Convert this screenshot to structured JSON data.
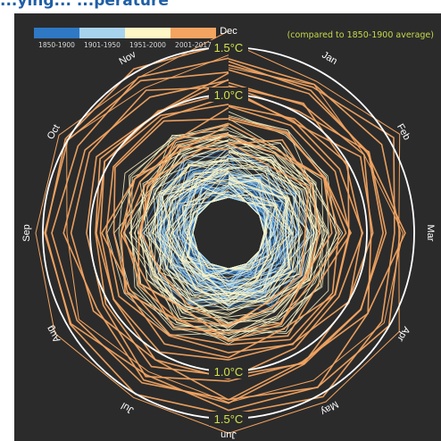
{
  "header": {
    "title_partial": "...ying... ...perature"
  },
  "legend": {
    "items": [
      {
        "label": "1850-1900",
        "color": "#2f78c4"
      },
      {
        "label": "1901-1950",
        "color": "#a8d3ee"
      },
      {
        "label": "1951-2000",
        "color": "#fff6c6"
      },
      {
        "label": "2001-2017",
        "color": "#f3a461"
      }
    ]
  },
  "note": "(compared to 1850-1900 average)",
  "chart_data": {
    "type": "line",
    "subtype": "radial",
    "angular_axis": [
      "Dec",
      "Jan",
      "Feb",
      "Mar",
      "Apr",
      "May",
      "Jun",
      "Jul",
      "Aug",
      "Sep",
      "Oct",
      "Nov"
    ],
    "radial_axis": {
      "unit": "°C",
      "range": [
        -1.0,
        1.5
      ],
      "reference_rings": [
        {
          "value": 1.0,
          "label": "1.0°C"
        },
        {
          "value": 1.5,
          "label": "1.5°C"
        }
      ]
    },
    "series_groups": [
      {
        "name": "1850-1900",
        "color": "#2f78c4",
        "approx_anomaly_range": [
          -0.5,
          0.3
        ]
      },
      {
        "name": "1901-1950",
        "color": "#a8d3ee",
        "approx_anomaly_range": [
          -0.35,
          0.35
        ]
      },
      {
        "name": "1951-2000",
        "color": "#fff6c6",
        "approx_anomaly_range": [
          -0.1,
          0.7
        ]
      },
      {
        "name": "2001-2017",
        "color": "#f3a461",
        "approx_anomaly_range": [
          0.45,
          1.45
        ]
      }
    ],
    "label_color": "#d4e24a",
    "grid": false
  }
}
